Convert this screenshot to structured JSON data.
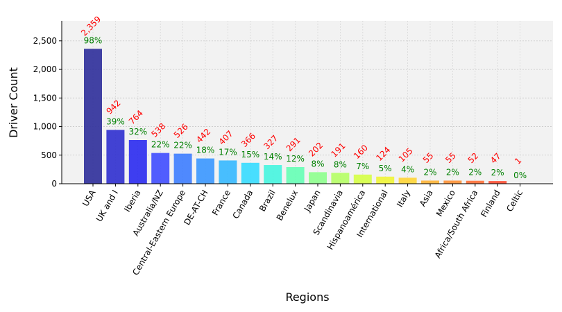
{
  "chart_data": {
    "type": "bar",
    "title": "",
    "xlabel": "Regions",
    "ylabel": "Driver Count",
    "ylim": [
      0,
      2850
    ],
    "yticks": [
      0,
      500,
      1000,
      1500,
      2000,
      2500
    ],
    "ytick_labels": [
      "0",
      "500",
      "1,000",
      "1,500",
      "2,000",
      "2,500"
    ],
    "grid": true,
    "categories": [
      "USA",
      "UK and I",
      "Iberia",
      "Australia/NZ",
      "Central-Eastern Europe",
      "DE-AT-CH",
      "France",
      "Canada",
      "Brazil",
      "Benelux",
      "Japan",
      "Scandinavia",
      "Hispanoamérica",
      "International",
      "Italy",
      "Asia",
      "Mexico",
      "Africa/South Africa",
      "Finland",
      "Celtic"
    ],
    "values": [
      2359,
      942,
      764,
      538,
      526,
      442,
      407,
      366,
      327,
      291,
      202,
      191,
      160,
      124,
      105,
      55,
      55,
      52,
      47,
      1
    ],
    "value_labels": [
      "2,359",
      "942",
      "764",
      "538",
      "526",
      "442",
      "407",
      "366",
      "327",
      "291",
      "202",
      "191",
      "160",
      "124",
      "105",
      "55",
      "55",
      "52",
      "47",
      "1"
    ],
    "percent_labels": [
      "98%",
      "39%",
      "32%",
      "22%",
      "22%",
      "18%",
      "17%",
      "15%",
      "14%",
      "12%",
      "8%",
      "8%",
      "7%",
      "5%",
      "4%",
      "2%",
      "2%",
      "2%",
      "2%",
      "0%"
    ],
    "bar_colors": [
      "#2e2e9a",
      "#2f2fcf",
      "#2a2af0",
      "#3f4cff",
      "#3d7dff",
      "#3a97ff",
      "#35b8ff",
      "#35dcff",
      "#45f5df",
      "#65ffb5",
      "#8dff8d",
      "#b5ff65",
      "#d5ff45",
      "#f0f535",
      "#ffd535",
      "#ffb235",
      "#ff9035",
      "#ff6e35",
      "#ff4a30",
      "#f02020"
    ],
    "value_label_color": "#ff0000",
    "percent_label_color": "#008000",
    "plot_background": "#f2f2f2"
  }
}
